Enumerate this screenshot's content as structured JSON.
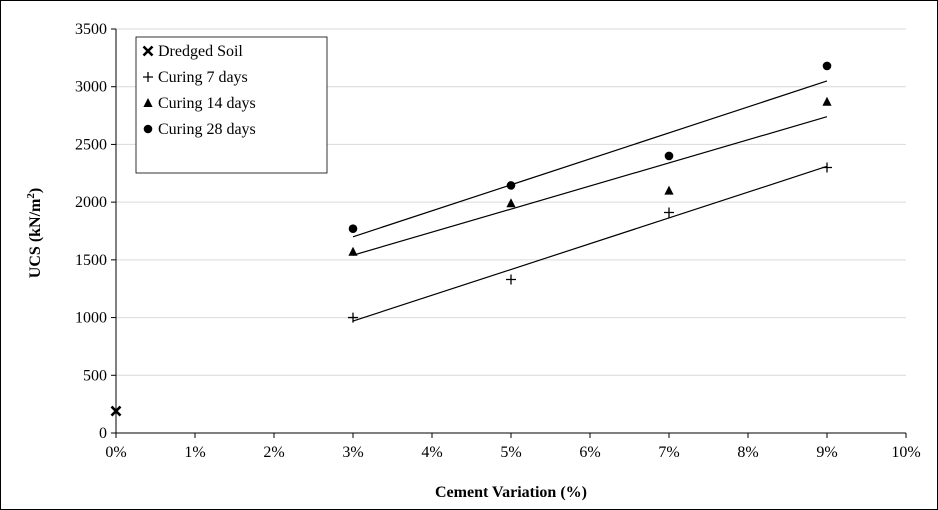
{
  "chart_data": {
    "type": "scatter",
    "xlabel": "Cement Variation (%)",
    "ylabel_main": "UCS (kN/m",
    "ylabel_sup": "2",
    "ylabel_tail": ")",
    "xlim": [
      0,
      10
    ],
    "ylim": [
      0,
      3500
    ],
    "x_ticks": [
      0,
      1,
      2,
      3,
      4,
      5,
      6,
      7,
      8,
      9,
      10
    ],
    "x_tick_labels": [
      "0%",
      "1%",
      "2%",
      "3%",
      "4%",
      "5%",
      "6%",
      "7%",
      "8%",
      "9%",
      "10%"
    ],
    "y_ticks": [
      0,
      500,
      1000,
      1500,
      2000,
      2500,
      3000,
      3500
    ],
    "y_tick_labels": [
      "0",
      "500",
      "1000",
      "1500",
      "2000",
      "2500",
      "3000",
      "3500"
    ],
    "grid": "horizontal",
    "legend_position": "top-left",
    "series": [
      {
        "name": "Dredged Soil",
        "marker": "x",
        "points": [
          {
            "x": 0,
            "y": 190
          }
        ],
        "trendline": null
      },
      {
        "name": "Curing 7 days",
        "marker": "plus",
        "points": [
          {
            "x": 3,
            "y": 1000
          },
          {
            "x": 5,
            "y": 1330
          },
          {
            "x": 7,
            "y": 1910
          },
          {
            "x": 9,
            "y": 2300
          }
        ],
        "trendline": [
          {
            "x": 3,
            "y": 970
          },
          {
            "x": 9,
            "y": 2310
          }
        ]
      },
      {
        "name": "Curing 14 days",
        "marker": "triangle",
        "points": [
          {
            "x": 3,
            "y": 1570
          },
          {
            "x": 5,
            "y": 1990
          },
          {
            "x": 7,
            "y": 2100
          },
          {
            "x": 9,
            "y": 2870
          }
        ],
        "trendline": [
          {
            "x": 3,
            "y": 1540
          },
          {
            "x": 9,
            "y": 2740
          }
        ]
      },
      {
        "name": "Curing 28 days",
        "marker": "circle",
        "points": [
          {
            "x": 3,
            "y": 1770
          },
          {
            "x": 5,
            "y": 2145
          },
          {
            "x": 7,
            "y": 2400
          },
          {
            "x": 9,
            "y": 3180
          }
        ],
        "trendline": [
          {
            "x": 3,
            "y": 1700
          },
          {
            "x": 9,
            "y": 3050
          }
        ]
      }
    ]
  }
}
